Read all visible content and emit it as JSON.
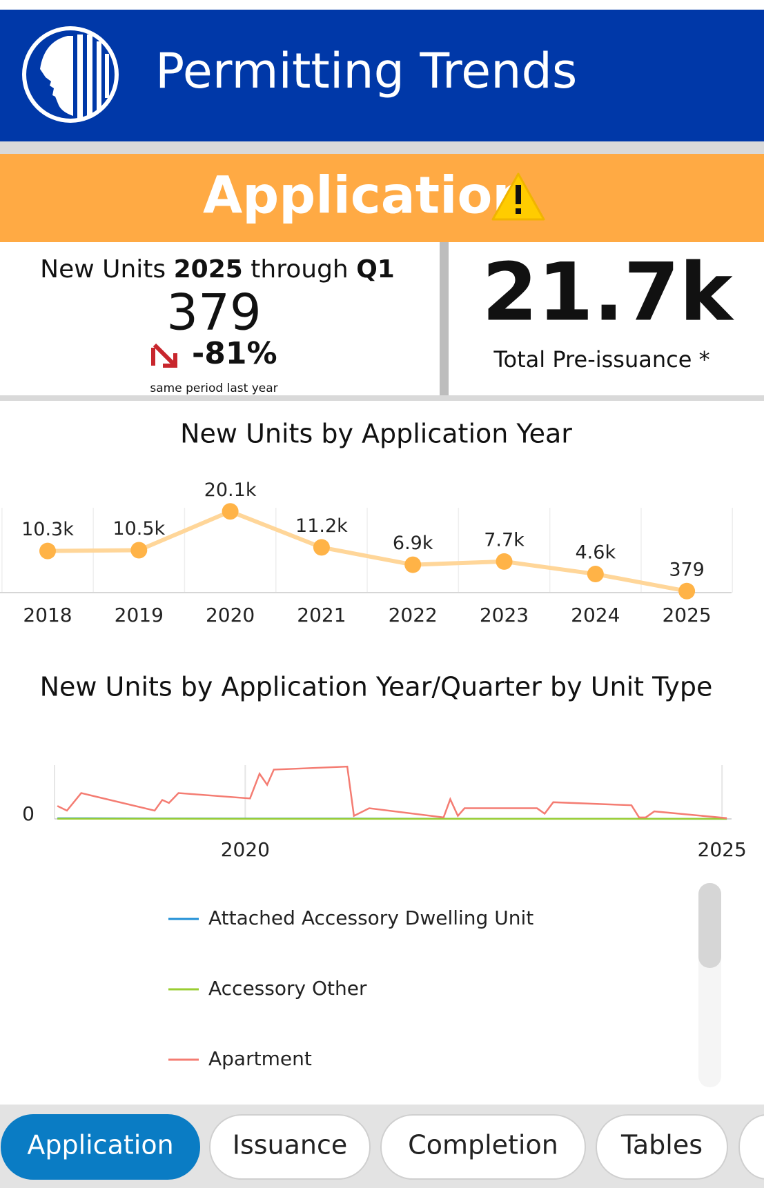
{
  "header": {
    "title": "Permitting Trends"
  },
  "banner": {
    "title": "Application"
  },
  "kpi": {
    "label_prefix": "New Units",
    "year": "2025",
    "through": "through",
    "quarter": "Q1",
    "value": "379",
    "change": "-81%",
    "change_note": "same period last year",
    "total": "21.7k",
    "total_label": "Total Pre-issuance *"
  },
  "tabs": [
    "Application",
    "Issuance",
    "Completion",
    "Tables"
  ],
  "chart_data": [
    {
      "type": "line",
      "title": "New Units by Application Year",
      "categories": [
        "2018",
        "2019",
        "2020",
        "2021",
        "2022",
        "2023",
        "2024",
        "2025"
      ],
      "values": [
        10300,
        10500,
        20100,
        11200,
        6900,
        7700,
        4600,
        379
      ],
      "value_labels": [
        "10.3k",
        "10.5k",
        "20.1k",
        "11.2k",
        "6.9k",
        "7.7k",
        "4.6k",
        "379"
      ],
      "color": "#ffb347",
      "line_color": "#ffd699",
      "ylim": [
        0,
        21000
      ],
      "grid": true
    },
    {
      "type": "multiline",
      "title": "New Units by Application Year/Quarter by Unit Type",
      "xlim": [
        2018,
        2025.1
      ],
      "xticks": [
        2020,
        2025
      ],
      "ylim": [
        0,
        5000
      ],
      "yticks": [
        0
      ],
      "series": [
        {
          "name": "Attached Accessory Dwelling Unit",
          "color": "#1f8fd6",
          "x": [
            2018.03,
            2019,
            2020,
            2021,
            2022,
            2023,
            2025.05
          ],
          "values": [
            60,
            40,
            30,
            30,
            20,
            20,
            10
          ]
        },
        {
          "name": "Accessory Other",
          "color": "#9acd32",
          "x": [
            2018.03,
            2019,
            2020,
            2021,
            2022,
            2023,
            2025.05
          ],
          "values": [
            20,
            20,
            10,
            10,
            10,
            10,
            5
          ]
        },
        {
          "name": "Apartment",
          "color": "#f47c72",
          "x": [
            2018.03,
            2018.13,
            2018.28,
            2019.05,
            2019.13,
            2019.2,
            2019.3,
            2020.05,
            2020.15,
            2020.23,
            2020.3,
            2021.07,
            2021.14,
            2021.3,
            2022.08,
            2022.15,
            2022.23,
            2022.3,
            2023.06,
            2023.14,
            2023.23,
            2024.05,
            2024.13,
            2024.2,
            2024.29,
            2025.05
          ],
          "values": [
            1200,
            770,
            2400,
            770,
            1760,
            1480,
            2400,
            1900,
            4200,
            3170,
            4580,
            4860,
            280,
            990,
            140,
            1830,
            280,
            990,
            990,
            490,
            1550,
            1270,
            140,
            140,
            700,
            70
          ]
        }
      ]
    }
  ]
}
